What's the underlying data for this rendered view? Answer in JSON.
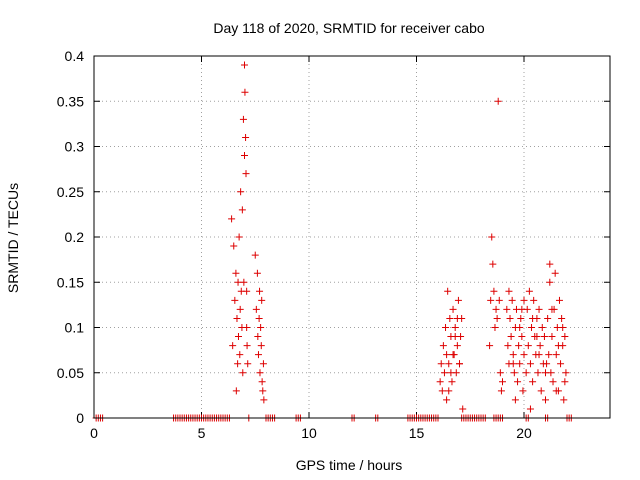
{
  "chart_data": {
    "type": "scatter",
    "title": "Day 118 of 2020, SRMTID for receiver cabo",
    "xlabel": "GPS time / hours",
    "ylabel": "SRMTID / TECUs",
    "xlim": [
      0,
      24
    ],
    "ylim": [
      0,
      0.4
    ],
    "xticks": [
      0,
      5,
      10,
      15,
      20
    ],
    "xtick_labels": [
      "0",
      "5",
      "10",
      "15",
      "20"
    ],
    "yticks": [
      0,
      0.05,
      0.1,
      0.15,
      0.2,
      0.25,
      0.3,
      0.35,
      0.4
    ],
    "ytick_labels": [
      "0",
      "0.05",
      "0.1",
      "0.15",
      "0.2",
      "0.25",
      "0.3",
      "0.35",
      "0.4"
    ],
    "grid": true,
    "marker": "+",
    "series": [
      {
        "name": "cabo",
        "color": "#dd0000",
        "x": [
          0.1,
          0.2,
          0.3,
          0.4,
          3.7,
          3.8,
          3.9,
          4.0,
          4.1,
          4.2,
          4.3,
          4.4,
          4.5,
          4.6,
          4.7,
          4.8,
          4.9,
          5.0,
          5.1,
          5.2,
          5.3,
          5.4,
          5.5,
          5.6,
          5.7,
          5.8,
          5.9,
          6.0,
          6.1,
          6.2,
          6.3,
          6.4,
          6.45,
          6.5,
          6.55,
          6.6,
          6.62,
          6.65,
          6.68,
          6.7,
          6.72,
          6.75,
          6.78,
          6.8,
          6.82,
          6.85,
          6.88,
          6.9,
          6.92,
          6.95,
          6.97,
          7.0,
          7.0,
          7.02,
          7.05,
          7.07,
          7.1,
          7.1,
          7.12,
          7.15,
          7.2,
          7.5,
          7.55,
          7.6,
          7.62,
          7.65,
          7.68,
          7.7,
          7.72,
          7.75,
          7.78,
          7.8,
          7.82,
          7.85,
          7.88,
          7.9,
          8.0,
          8.1,
          8.2,
          8.3,
          8.4,
          9.4,
          9.5,
          9.6,
          12.0,
          12.1,
          13.1,
          13.2,
          14.6,
          14.7,
          14.8,
          14.9,
          15.0,
          15.1,
          15.2,
          15.3,
          15.4,
          15.5,
          15.6,
          15.7,
          15.8,
          15.9,
          16.0,
          16.1,
          16.15,
          16.2,
          16.25,
          16.3,
          16.35,
          16.4,
          16.45,
          16.5,
          16.55,
          16.6,
          16.65,
          16.7,
          16.75,
          16.8,
          16.85,
          16.9,
          16.95,
          17.0,
          17.05,
          17.1,
          17.15,
          16.4,
          16.5,
          16.6,
          16.7,
          16.8,
          16.9,
          17.0,
          17.1,
          17.2,
          17.3,
          17.4,
          17.5,
          17.6,
          17.7,
          17.8,
          17.9,
          18.0,
          18.1,
          18.2,
          18.4,
          18.45,
          18.5,
          18.55,
          18.6,
          18.65,
          18.7,
          18.75,
          18.8,
          18.85,
          18.9,
          18.95,
          19.0,
          19.2,
          19.25,
          19.3,
          19.35,
          19.4,
          19.45,
          19.5,
          19.55,
          19.6,
          19.65,
          19.7,
          19.75,
          19.8,
          19.85,
          19.9,
          19.95,
          20.0,
          20.1,
          20.15,
          20.2,
          20.25,
          20.3,
          20.35,
          20.4,
          20.45,
          20.5,
          20.55,
          20.6,
          20.65,
          20.7,
          20.75,
          20.8,
          20.85,
          20.9,
          20.95,
          21.0,
          21.05,
          21.1,
          21.15,
          21.2,
          21.25,
          21.3,
          21.35,
          21.4,
          21.45,
          21.5,
          21.55,
          21.6,
          21.65,
          21.7,
          21.75,
          21.8,
          21.85,
          21.9,
          21.95,
          19.3,
          19.6,
          19.9,
          20.3,
          20.6,
          21.2,
          21.5,
          21.8,
          19.5,
          19.8,
          20.0,
          20.4,
          20.7,
          21.0,
          21.3,
          21.6,
          21.9,
          18.6,
          18.7,
          18.8,
          18.9,
          19.0,
          20.1,
          20.2,
          21.0,
          21.1,
          22.0,
          22.1,
          22.2
        ],
        "y": [
          0,
          0,
          0,
          0,
          0,
          0,
          0,
          0,
          0,
          0,
          0,
          0,
          0,
          0,
          0,
          0,
          0,
          0,
          0,
          0,
          0,
          0,
          0,
          0,
          0,
          0,
          0,
          0,
          0,
          0,
          0,
          0.22,
          0.08,
          0.19,
          0.13,
          0.16,
          0.03,
          0.11,
          0.06,
          0.15,
          0.09,
          0.2,
          0.07,
          0.12,
          0.25,
          0.14,
          0.1,
          0.23,
          0.05,
          0.33,
          0.15,
          0.39,
          0.29,
          0.36,
          0.31,
          0.27,
          0.14,
          0.1,
          0.08,
          0.06,
          0,
          0.18,
          0.12,
          0.16,
          0.09,
          0.07,
          0.11,
          0.14,
          0.05,
          0.1,
          0.08,
          0.13,
          0.04,
          0.03,
          0.06,
          0.02,
          0,
          0,
          0,
          0,
          0,
          0,
          0,
          0,
          0,
          0,
          0,
          0,
          0,
          0,
          0,
          0,
          0,
          0,
          0,
          0,
          0,
          0,
          0,
          0,
          0,
          0,
          0,
          0.04,
          0.06,
          0.03,
          0.08,
          0.05,
          0.1,
          0.07,
          0.14,
          0.06,
          0.11,
          0.09,
          0.04,
          0.12,
          0.07,
          0.1,
          0.05,
          0.08,
          0.13,
          0.06,
          0.09,
          0.11,
          0.01,
          0.02,
          0.03,
          0.05,
          0.07,
          0.09,
          0.11,
          0.06,
          0,
          0,
          0,
          0,
          0,
          0,
          0,
          0,
          0,
          0,
          0,
          0,
          0.08,
          0.13,
          0.2,
          0.17,
          0.14,
          0.1,
          0.12,
          0.11,
          0.35,
          0.13,
          0.05,
          0.03,
          0.04,
          0.12,
          0.08,
          0.06,
          0.11,
          0.09,
          0.13,
          0.07,
          0.05,
          0.1,
          0.12,
          0.04,
          0.08,
          0.06,
          0.11,
          0.09,
          0.03,
          0.07,
          0.05,
          0.12,
          0.08,
          0.14,
          0.06,
          0.1,
          0.04,
          0.13,
          0.09,
          0.07,
          0.11,
          0.05,
          0.12,
          0.08,
          0.03,
          0.1,
          0.06,
          0.09,
          0.02,
          0.06,
          0.11,
          0.07,
          0.15,
          0.05,
          0.09,
          0.04,
          0.12,
          0.16,
          0.07,
          0.1,
          0.03,
          0.13,
          0.06,
          0.11,
          0.08,
          0.02,
          0.09,
          0.05,
          0.14,
          0.02,
          0.12,
          0.01,
          0.09,
          0.17,
          0.03,
          0.1,
          0.06,
          0.1,
          0.13,
          0.11,
          0.07,
          0.05,
          0.12,
          0.08,
          0.04,
          0,
          0,
          0,
          0,
          0,
          0,
          0,
          0,
          0,
          0,
          0,
          0
        ]
      }
    ]
  }
}
